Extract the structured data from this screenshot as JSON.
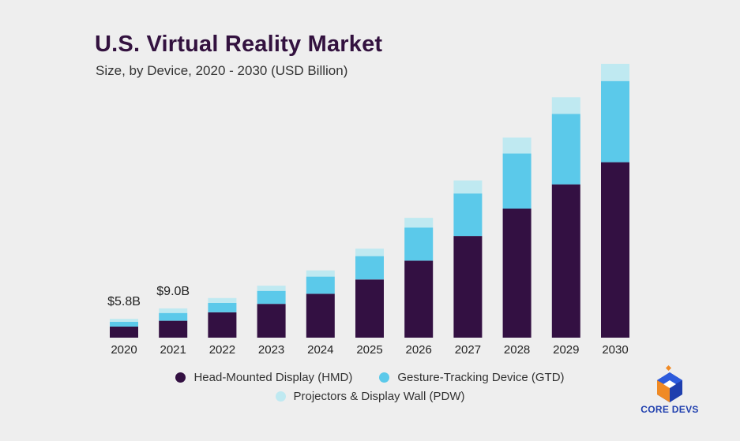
{
  "title": "U.S. Virtual Reality Market",
  "subtitle": "Size, by Device, 2020 - 2030 (USD Billion)",
  "colors": {
    "hmd": "#331042",
    "gtd": "#5bc9ea",
    "pdw": "#bfe9f1",
    "background": "#eeeeee"
  },
  "chart_data": {
    "type": "bar",
    "stacked": true,
    "categories": [
      "2020",
      "2021",
      "2022",
      "2023",
      "2024",
      "2025",
      "2026",
      "2027",
      "2028",
      "2029",
      "2030"
    ],
    "series": [
      {
        "name": "Head-Mounted Display (HMD)",
        "values": [
          3.4,
          5.2,
          7.8,
          10.4,
          13.5,
          17.9,
          23.7,
          31.3,
          39.7,
          47.2,
          54.0
        ]
      },
      {
        "name": "Gesture-Tracking Device (GTD)",
        "values": [
          1.5,
          2.4,
          2.9,
          4.0,
          5.3,
          7.2,
          10.2,
          13.1,
          17.0,
          21.7,
          25.0
        ]
      },
      {
        "name": "Projectors & Display Wall (PDW)",
        "values": [
          0.9,
          1.4,
          1.5,
          1.6,
          1.9,
          2.3,
          3.0,
          4.0,
          4.9,
          5.1,
          5.3
        ]
      }
    ],
    "data_labels": [
      {
        "category": "2020",
        "text": "$5.8B"
      },
      {
        "category": "2021",
        "text": "$9.0B"
      }
    ],
    "xlabel": "",
    "ylabel": "",
    "ylim": [
      0,
      85
    ],
    "grid": false,
    "legend_position": "bottom"
  },
  "logo": {
    "text": "CORE DEVS"
  }
}
